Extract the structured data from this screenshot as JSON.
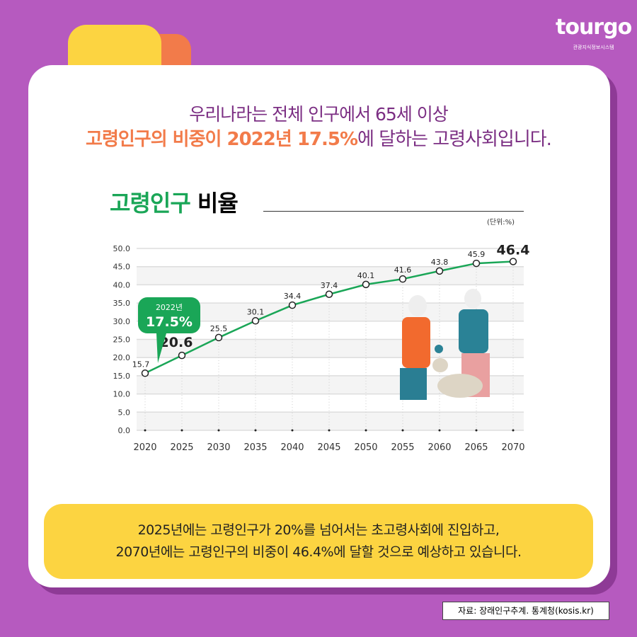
{
  "logo": {
    "word": "tourgo",
    "subtitle": "관광지식정보시스템"
  },
  "headline": {
    "line1": "우리나라는 전체 인구에서 65세 이상",
    "line2_highlight": "고령인구의 비중이 2022년 17.5%",
    "line2_rest": "에 달하는 고령사회입니다."
  },
  "chart_title": {
    "green": "고령인구",
    "black": " 비율"
  },
  "unit": "(단위:%)",
  "callout": {
    "year": "2022년",
    "value": "17.5%"
  },
  "chart_data": {
    "type": "line",
    "title": "고령인구 비율",
    "ylabel": "%",
    "ylim": [
      0,
      50
    ],
    "yticks": [
      "0.0",
      "5.0",
      "10.0",
      "15.0",
      "20.0",
      "25.0",
      "30.0",
      "35.0",
      "40.0",
      "45.0",
      "50.0"
    ],
    "x": [
      "2020",
      "2025",
      "2030",
      "2035",
      "2040",
      "2045",
      "2050",
      "2055",
      "2060",
      "2065",
      "2070"
    ],
    "values": [
      15.7,
      20.6,
      25.5,
      30.1,
      34.4,
      37.4,
      40.1,
      41.6,
      43.8,
      45.9,
      46.4
    ],
    "labels": [
      "15.7",
      "20.6",
      "25.5",
      "30.1",
      "34.4",
      "37.4",
      "40.1",
      "41.6",
      "43.8",
      "45.9",
      "46.4"
    ],
    "color": "#1aa657"
  },
  "summary": {
    "line1": "2025년에는 고령인구가 20%를 넘어서는 초고령사회에 진입하고,",
    "line2": "2070년에는 고령인구의 비중이 46.4%에 달할 것으로 예상하고 있습니다."
  },
  "source": "자료: 장래인구추계. 통계청(kosis.kr)"
}
